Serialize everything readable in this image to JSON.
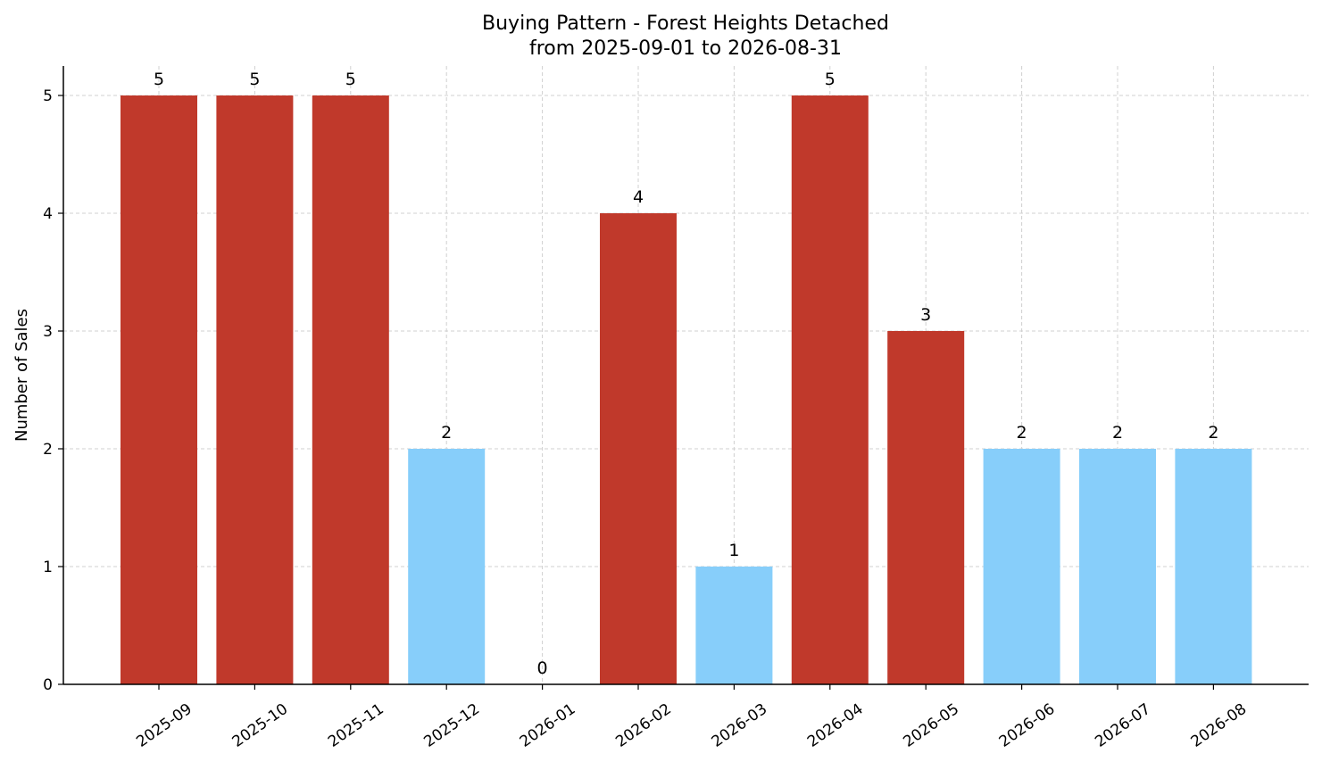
{
  "chart_data": {
    "type": "bar",
    "title_line1": "Buying Pattern - Forest Heights Detached",
    "title_line2": "from 2025-09-01 to 2026-08-31",
    "xlabel": "",
    "ylabel": "Number of Sales",
    "ylim": [
      0,
      5.25
    ],
    "yticks": [
      "0",
      "1",
      "2",
      "3",
      "4",
      "5"
    ],
    "grid": true,
    "categories": [
      "2025-09",
      "2025-10",
      "2025-11",
      "2025-12",
      "2026-01",
      "2026-02",
      "2026-03",
      "2026-04",
      "2026-05",
      "2026-06",
      "2026-07",
      "2026-08"
    ],
    "values": [
      5,
      5,
      5,
      2,
      0,
      4,
      1,
      5,
      3,
      2,
      2,
      2
    ],
    "value_labels": [
      "5",
      "5",
      "5",
      "2",
      "0",
      "4",
      "1",
      "5",
      "3",
      "2",
      "2",
      "2"
    ],
    "colors": {
      "high": "#c0392b",
      "low": "#87cefa"
    },
    "color_threshold": 3
  }
}
